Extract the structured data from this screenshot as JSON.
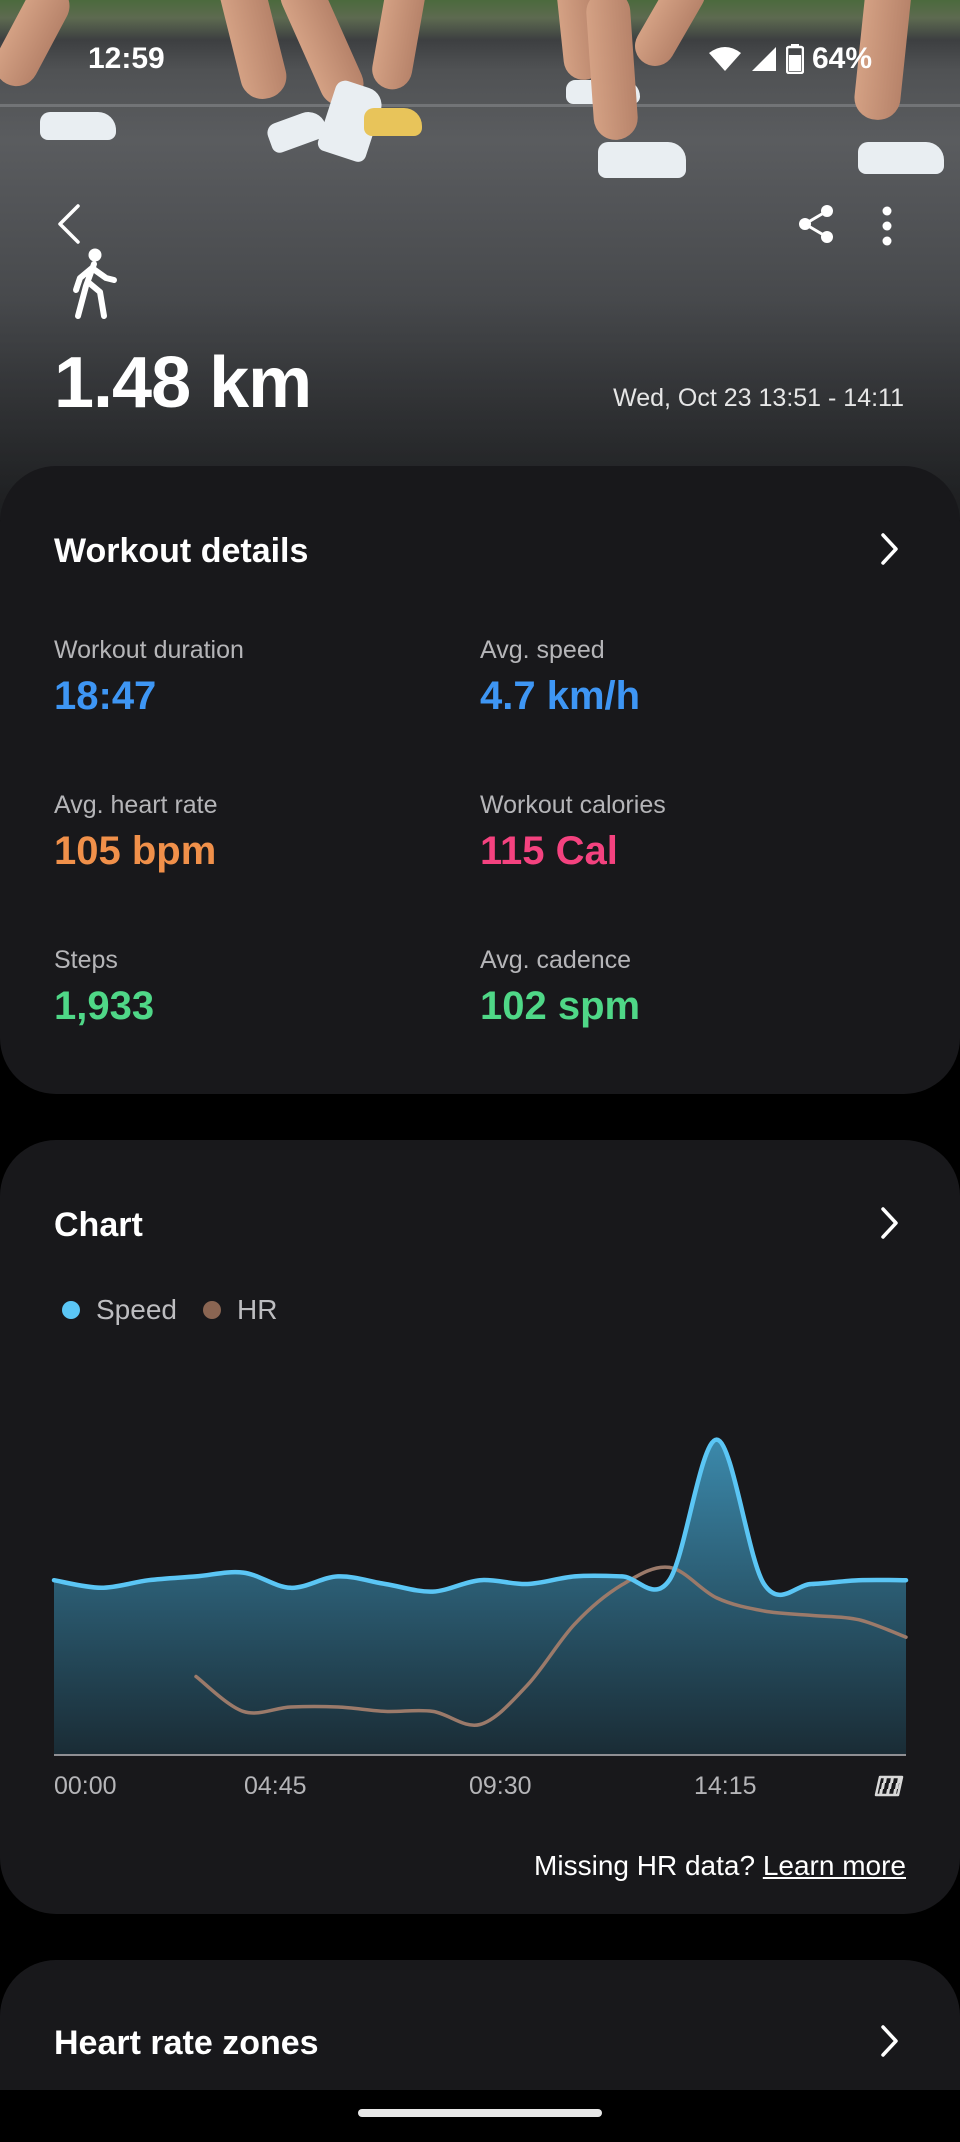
{
  "status": {
    "time": "12:59",
    "battery": "64%",
    "icons": [
      "wifi-icon",
      "signal-icon",
      "battery-icon"
    ]
  },
  "toolbar": {
    "back_icon": "chevron-left-icon",
    "share_icon": "share-icon",
    "more_icon": "more-vertical-icon"
  },
  "summary": {
    "activity_icon": "walking-icon",
    "distance": "1.48 km",
    "date_range": "Wed, Oct 23 13:51 - 14:11"
  },
  "details": {
    "title": "Workout details",
    "metrics": [
      {
        "label": "Workout duration",
        "value": "18:47",
        "color": "#3e96f4"
      },
      {
        "label": "Avg. speed",
        "value": "4.7 km/h",
        "color": "#3e96f4"
      },
      {
        "label": "Avg. heart rate",
        "value": "105 bpm",
        "color": "#f0904a"
      },
      {
        "label": "Workout calories",
        "value": "115 Cal",
        "color": "#f4427f"
      },
      {
        "label": "Steps",
        "value": "1,933",
        "color": "#4fd787"
      },
      {
        "label": "Avg. cadence",
        "value": "102 spm",
        "color": "#4fd787"
      }
    ]
  },
  "chart": {
    "title": "Chart",
    "legend": [
      {
        "label": "Speed",
        "color": "#5bc6f5"
      },
      {
        "label": "HR",
        "color": "#8a6552"
      }
    ],
    "missing_text": "Missing HR data?",
    "learn_more": "Learn more",
    "finish_icon": "finish-flag-icon"
  },
  "chart_data": {
    "type": "area",
    "x_ticks": [
      "00:00",
      "04:45",
      "09:30",
      "14:15"
    ],
    "x": [
      0.0,
      1.0,
      2.0,
      3.0,
      4.0,
      5.0,
      6.0,
      7.0,
      8.0,
      9.0,
      10.0,
      11.0,
      12.0,
      13.0,
      14.0,
      15.0,
      16.0,
      17.0,
      18.0
    ],
    "series": [
      {
        "name": "Speed",
        "values": [
          4.6,
          4.4,
          4.6,
          4.7,
          4.8,
          4.4,
          4.7,
          4.5,
          4.3,
          4.6,
          4.5,
          4.7,
          4.7,
          4.6,
          8.3,
          4.5,
          4.5,
          4.6,
          4.6
        ],
        "color": "#5bc6f5"
      },
      {
        "name": "HR",
        "values": [
          null,
          null,
          null,
          88,
          80,
          81,
          81,
          80,
          80,
          77,
          86,
          100,
          109,
          113,
          106,
          103,
          102,
          101,
          97
        ],
        "color": "#8a6552"
      }
    ],
    "speed_range": [
      0,
      10
    ],
    "hr_range": [
      70,
      125
    ],
    "grid": false
  },
  "more": {
    "title": "Heart rate zones"
  }
}
